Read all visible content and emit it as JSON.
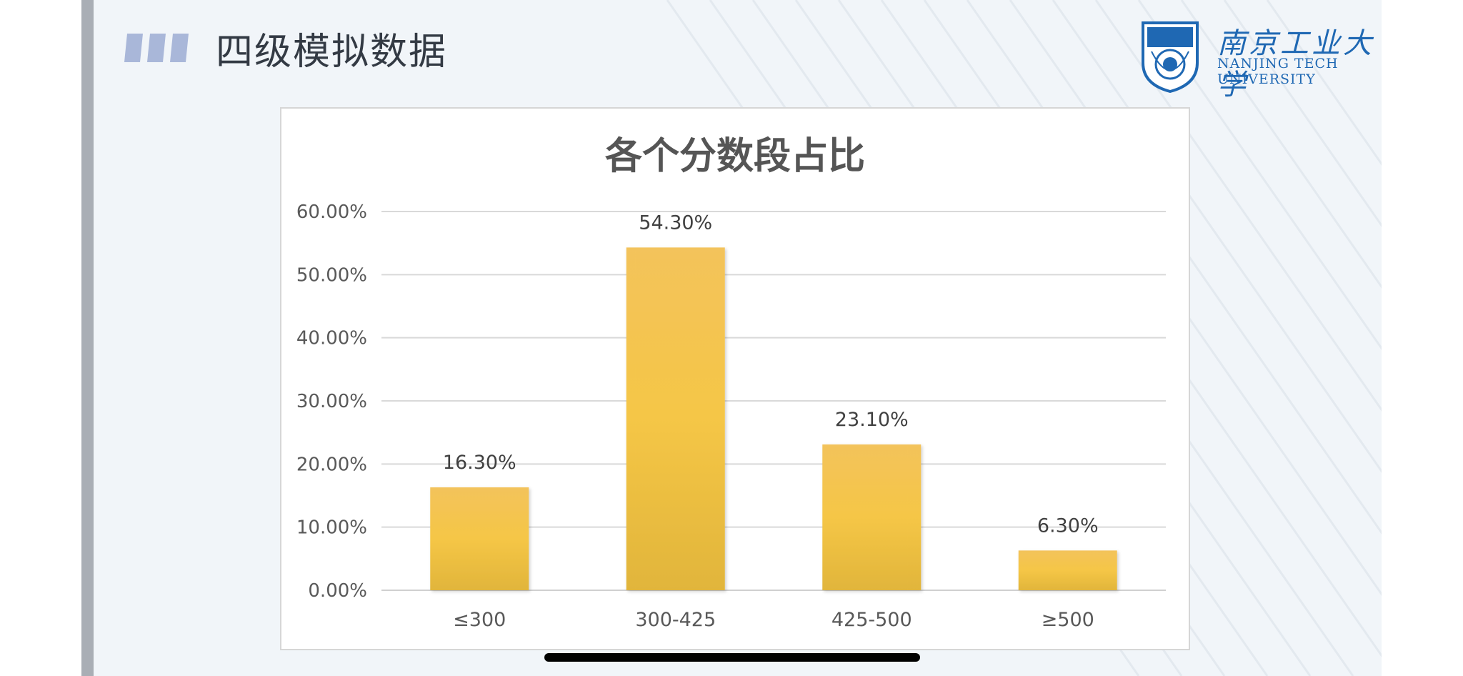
{
  "slide": {
    "title": "四级模拟数据"
  },
  "logo": {
    "name_cn": "南京工业大学",
    "name_en_line1": "NANJING TECH",
    "name_en_line2": "UNIVERSITY"
  },
  "colors": {
    "bar": "#f3c242",
    "accent": "#1f68b3",
    "title_marks": "#a9b7d9"
  },
  "chart_data": {
    "type": "bar",
    "title": "各个分数段占比",
    "categories": [
      "≤300",
      "300-425",
      "425-500",
      "≥500"
    ],
    "values": [
      16.3,
      54.3,
      23.1,
      6.3
    ],
    "value_labels": [
      "16.30%",
      "54.30%",
      "23.10%",
      "6.30%"
    ],
    "y_ticks": [
      "0.00%",
      "10.00%",
      "20.00%",
      "30.00%",
      "40.00%",
      "50.00%",
      "60.00%"
    ],
    "ylim": [
      0,
      60
    ],
    "grid": true,
    "legend": "none",
    "xlabel": "",
    "ylabel": ""
  }
}
